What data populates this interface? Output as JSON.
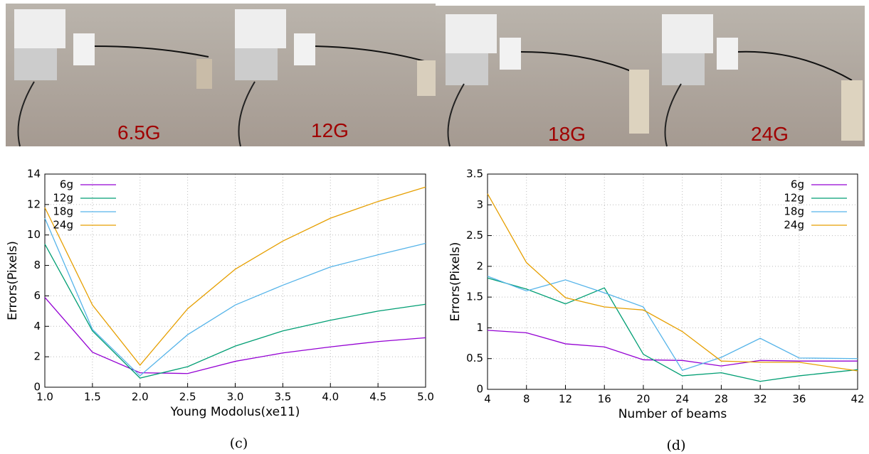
{
  "photos": [
    {
      "label": "6.5G"
    },
    {
      "label": "12G"
    },
    {
      "label": "18G"
    },
    {
      "label": "24G"
    }
  ],
  "chart_data": [
    {
      "type": "line",
      "caption": "(c)",
      "x_label": "Young Modolus(xe11)",
      "y_label": "Errors(Pixels)",
      "x": [
        1,
        1.5,
        2,
        2.5,
        3,
        3.5,
        4,
        4.5,
        5
      ],
      "xlim": [
        1,
        5
      ],
      "xticks": [
        {
          "value": 1,
          "label": "1.0"
        },
        {
          "value": 1.5,
          "label": "1.5"
        },
        {
          "value": 2,
          "label": "2.0"
        },
        {
          "value": 2.5,
          "label": "2.5"
        },
        {
          "value": 3,
          "label": "3.0"
        },
        {
          "value": 3.5,
          "label": "3.5"
        },
        {
          "value": 4,
          "label": "4.0"
        },
        {
          "value": 4.5,
          "label": "4.5"
        },
        {
          "value": 5,
          "label": "5.0"
        }
      ],
      "ylim": [
        0,
        14
      ],
      "yticks": [
        0,
        2,
        4,
        6,
        8,
        10,
        12,
        14
      ],
      "grid": true,
      "legend": "upper left",
      "series": [
        {
          "name": "6g",
          "color": "#9400d3",
          "values": [
            5.9,
            2.3,
            0.95,
            0.9,
            1.7,
            2.25,
            2.65,
            3.0,
            3.25
          ]
        },
        {
          "name": "12g",
          "color": "#009e73",
          "values": [
            9.4,
            3.7,
            0.6,
            1.35,
            2.7,
            3.7,
            4.4,
            5.0,
            5.45
          ]
        },
        {
          "name": "18g",
          "color": "#56b4e9",
          "values": [
            11.1,
            3.8,
            0.75,
            3.45,
            5.4,
            6.7,
            7.9,
            8.7,
            9.45
          ]
        },
        {
          "name": "24g",
          "color": "#e69f00",
          "values": [
            11.8,
            5.4,
            1.45,
            5.15,
            7.75,
            9.6,
            11.1,
            12.2,
            13.15
          ]
        }
      ]
    },
    {
      "type": "line",
      "caption": "(d)",
      "x_label": "Number of beams",
      "y_label": "Errors(Pixels)",
      "x": [
        4,
        8,
        12,
        16,
        20,
        24,
        28,
        32,
        36,
        42
      ],
      "xlim": [
        4,
        42
      ],
      "xticks": [
        4,
        8,
        12,
        16,
        20,
        24,
        28,
        32,
        36,
        42
      ],
      "ylim": [
        0,
        3.5
      ],
      "yticks": [
        0,
        0.5,
        1,
        1.5,
        2,
        2.5,
        3,
        3.5
      ],
      "grid": true,
      "legend": "upper right",
      "series": [
        {
          "name": "6g",
          "color": "#9400d3",
          "values": [
            0.96,
            0.92,
            0.74,
            0.69,
            0.48,
            0.47,
            0.38,
            0.47,
            0.46,
            0.46
          ]
        },
        {
          "name": "12g",
          "color": "#009e73",
          "values": [
            1.81,
            1.63,
            1.39,
            1.65,
            0.57,
            0.22,
            0.27,
            0.13,
            0.22,
            0.32
          ]
        },
        {
          "name": "18g",
          "color": "#56b4e9",
          "values": [
            1.84,
            1.6,
            1.78,
            1.57,
            1.34,
            0.31,
            0.52,
            0.83,
            0.51,
            0.5
          ]
        },
        {
          "name": "24g",
          "color": "#e69f00",
          "values": [
            3.18,
            2.06,
            1.49,
            1.34,
            1.29,
            0.94,
            0.46,
            0.44,
            0.44,
            0.3
          ]
        }
      ]
    }
  ]
}
